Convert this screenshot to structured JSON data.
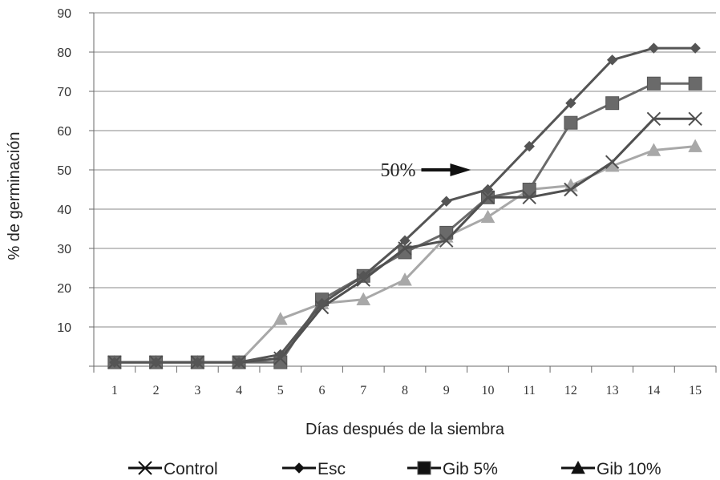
{
  "chart_data": {
    "type": "line",
    "xlabel": "Días después de la siembra",
    "ylabel": "% de germinación",
    "x": [
      1,
      2,
      3,
      4,
      5,
      6,
      7,
      8,
      9,
      10,
      11,
      12,
      13,
      14,
      15
    ],
    "categories": [
      "1",
      "2",
      "3",
      "4",
      "5",
      "6",
      "7",
      "8",
      "9",
      "10",
      "11",
      "12",
      "13",
      "14",
      "15"
    ],
    "ylim": [
      0,
      90
    ],
    "yticks": [
      "10",
      "20",
      "30",
      "40",
      "50",
      "60",
      "70",
      "80",
      "90"
    ],
    "grid": true,
    "legend_position": "bottom",
    "annotation": {
      "text": "50%",
      "x": 10,
      "y": 50
    },
    "series": [
      {
        "name": "Control",
        "marker": "x",
        "color": "#505050",
        "values": [
          1,
          1,
          1,
          1,
          2,
          15,
          22,
          30,
          32,
          43,
          43,
          45,
          52,
          63,
          63
        ]
      },
      {
        "name": "Esc",
        "marker": "diamond",
        "color": "#555555",
        "values": [
          1,
          1,
          1,
          1,
          3,
          16,
          23,
          32,
          42,
          45,
          56,
          67,
          78,
          81,
          81
        ]
      },
      {
        "name": "Gib 5%",
        "marker": "square",
        "color": "#6a6a6a",
        "values": [
          1,
          1,
          1,
          1,
          1,
          17,
          23,
          29,
          34,
          43,
          45,
          62,
          67,
          72,
          72
        ]
      },
      {
        "name": "Gib 10%",
        "marker": "triangle",
        "color": "#a8a8a8",
        "values": [
          1,
          1,
          1,
          1,
          12,
          16,
          17,
          22,
          33,
          38,
          45,
          46,
          51,
          55,
          56
        ]
      }
    ]
  }
}
